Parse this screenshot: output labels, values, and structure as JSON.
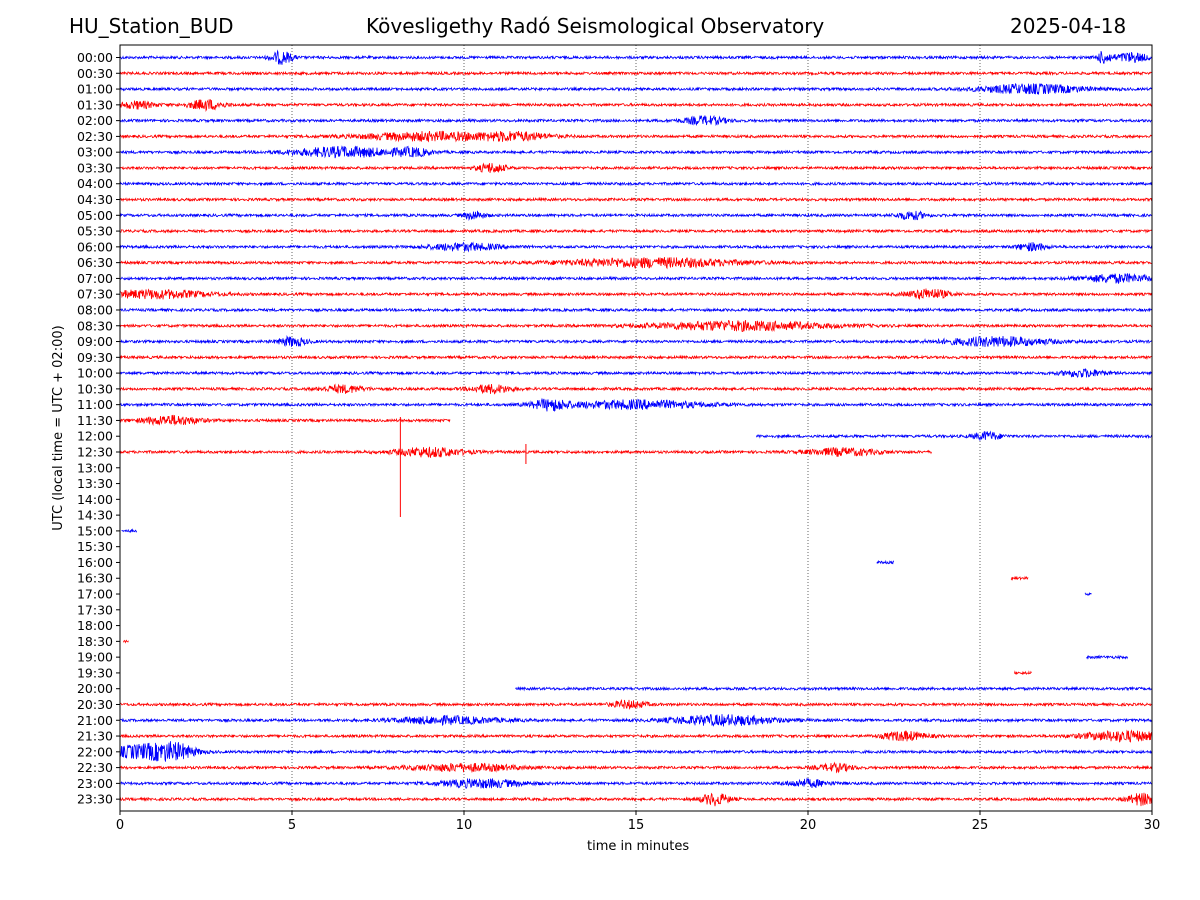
{
  "header": {
    "station": "HU_Station_BUD",
    "observatory": "Kövesligethy Radó Seismological Observatory",
    "date": "2025-04-18"
  },
  "chart_data": {
    "type": "line",
    "title": "Kövesligethy Radó Seismological Observatory",
    "xlabel": "time in minutes",
    "ylabel": "UTC (local time = UTC + 02:00)",
    "xlim": [
      0,
      30
    ],
    "xticks": [
      0,
      5,
      10,
      15,
      20,
      25,
      30
    ],
    "grid": "vertical dotted lines at every 5 minutes",
    "colors": {
      "even_rows": "#0000ff",
      "odd_rows": "#ff0000"
    },
    "rows": [
      {
        "label": "00:00",
        "color": "#0000ff",
        "segments": [
          [
            0,
            30
          ]
        ],
        "events": [
          {
            "t": 4.7,
            "amp": 1.4,
            "width": 0.3
          },
          {
            "t": 28.6,
            "amp": 1.3,
            "width": 0.2
          },
          {
            "t": 29.4,
            "amp": 1.0,
            "width": 0.5
          }
        ]
      },
      {
        "label": "00:30",
        "color": "#ff0000",
        "segments": [
          [
            0,
            30
          ]
        ],
        "events": []
      },
      {
        "label": "01:00",
        "color": "#0000ff",
        "segments": [
          [
            0,
            30
          ]
        ],
        "events": [
          {
            "t": 26.5,
            "amp": 1.0,
            "width": 1.5
          }
        ]
      },
      {
        "label": "01:30",
        "color": "#ff0000",
        "segments": [
          [
            0,
            30
          ]
        ],
        "events": [
          {
            "t": 2.5,
            "amp": 1.1,
            "width": 0.5
          },
          {
            "t": 0.5,
            "amp": 0.8,
            "width": 0.5
          }
        ]
      },
      {
        "label": "02:00",
        "color": "#0000ff",
        "segments": [
          [
            0,
            30
          ]
        ],
        "events": [
          {
            "t": 17.0,
            "amp": 0.9,
            "width": 0.6
          }
        ]
      },
      {
        "label": "02:30",
        "color": "#ff0000",
        "segments": [
          [
            0,
            30
          ]
        ],
        "events": [
          {
            "t": 9.0,
            "amp": 0.9,
            "width": 2.0
          },
          {
            "t": 11.5,
            "amp": 0.8,
            "width": 1.0
          }
        ]
      },
      {
        "label": "03:00",
        "color": "#0000ff",
        "segments": [
          [
            0,
            30
          ]
        ],
        "events": [
          {
            "t": 6.5,
            "amp": 1.1,
            "width": 1.5
          },
          {
            "t": 8.5,
            "amp": 0.8,
            "width": 0.5
          }
        ]
      },
      {
        "label": "03:30",
        "color": "#ff0000",
        "segments": [
          [
            0,
            30
          ]
        ],
        "events": [
          {
            "t": 10.8,
            "amp": 1.0,
            "width": 0.4
          }
        ]
      },
      {
        "label": "04:00",
        "color": "#0000ff",
        "segments": [
          [
            0,
            30
          ]
        ],
        "events": []
      },
      {
        "label": "04:30",
        "color": "#ff0000",
        "segments": [
          [
            0,
            30
          ]
        ],
        "events": []
      },
      {
        "label": "05:00",
        "color": "#0000ff",
        "segments": [
          [
            0,
            30
          ]
        ],
        "events": [
          {
            "t": 10.3,
            "amp": 0.9,
            "width": 0.3
          },
          {
            "t": 23.0,
            "amp": 0.9,
            "width": 0.4
          }
        ]
      },
      {
        "label": "05:30",
        "color": "#ff0000",
        "segments": [
          [
            0,
            30
          ]
        ],
        "events": []
      },
      {
        "label": "06:00",
        "color": "#0000ff",
        "segments": [
          [
            0,
            30
          ]
        ],
        "events": [
          {
            "t": 10.0,
            "amp": 0.8,
            "width": 1.0
          },
          {
            "t": 26.5,
            "amp": 0.8,
            "width": 0.4
          }
        ]
      },
      {
        "label": "06:30",
        "color": "#ff0000",
        "segments": [
          [
            0,
            30
          ]
        ],
        "events": [
          {
            "t": 15.5,
            "amp": 1.0,
            "width": 2.5
          }
        ]
      },
      {
        "label": "07:00",
        "color": "#0000ff",
        "segments": [
          [
            0,
            30
          ]
        ],
        "events": [
          {
            "t": 29.0,
            "amp": 0.9,
            "width": 1.0
          }
        ]
      },
      {
        "label": "07:30",
        "color": "#ff0000",
        "segments": [
          [
            0,
            30
          ]
        ],
        "events": [
          {
            "t": 23.5,
            "amp": 1.1,
            "width": 0.6
          },
          {
            "t": 1.0,
            "amp": 0.9,
            "width": 1.5
          }
        ]
      },
      {
        "label": "08:00",
        "color": "#0000ff",
        "segments": [
          [
            0,
            30
          ]
        ],
        "events": []
      },
      {
        "label": "08:30",
        "color": "#ff0000",
        "segments": [
          [
            0,
            30
          ]
        ],
        "events": [
          {
            "t": 18.0,
            "amp": 1.0,
            "width": 2.5
          }
        ]
      },
      {
        "label": "09:00",
        "color": "#0000ff",
        "segments": [
          [
            0,
            30
          ]
        ],
        "events": [
          {
            "t": 5.0,
            "amp": 1.0,
            "width": 0.4
          },
          {
            "t": 25.5,
            "amp": 1.0,
            "width": 1.5
          }
        ]
      },
      {
        "label": "09:30",
        "color": "#ff0000",
        "segments": [
          [
            0,
            30
          ]
        ],
        "events": []
      },
      {
        "label": "10:00",
        "color": "#0000ff",
        "segments": [
          [
            0,
            30
          ]
        ],
        "events": [
          {
            "t": 28.0,
            "amp": 0.8,
            "width": 0.6
          }
        ]
      },
      {
        "label": "10:30",
        "color": "#ff0000",
        "segments": [
          [
            0,
            30
          ]
        ],
        "events": [
          {
            "t": 10.8,
            "amp": 0.9,
            "width": 0.6
          },
          {
            "t": 6.5,
            "amp": 0.8,
            "width": 0.6
          }
        ]
      },
      {
        "label": "11:00",
        "color": "#0000ff",
        "segments": [
          [
            0,
            30
          ]
        ],
        "events": [
          {
            "t": 12.5,
            "amp": 1.1,
            "width": 0.5
          },
          {
            "t": 15.0,
            "amp": 0.9,
            "width": 2.0
          }
        ]
      },
      {
        "label": "11:30",
        "color": "#ff0000",
        "segments": [
          [
            0,
            9.6
          ]
        ],
        "events": [
          {
            "t": 1.5,
            "amp": 1.0,
            "width": 0.8
          }
        ]
      },
      {
        "label": "12:00",
        "color": "#0000ff",
        "segments": [
          [
            18.5,
            30
          ]
        ],
        "events": [
          {
            "t": 25.2,
            "amp": 0.9,
            "width": 0.4
          }
        ]
      },
      {
        "label": "12:30",
        "color": "#ff0000",
        "segments": [
          [
            0,
            23.6
          ]
        ],
        "events": [
          {
            "t": 9.0,
            "amp": 1.0,
            "width": 1.0
          },
          {
            "t": 21.0,
            "amp": 0.8,
            "width": 1.0
          }
        ],
        "spikes": [
          {
            "t": 8.15,
            "up": 35,
            "down": 65
          },
          {
            "t": 11.8,
            "up": 8,
            "down": 12
          }
        ]
      },
      {
        "label": "13:00",
        "color": "#0000ff",
        "segments": [],
        "events": []
      },
      {
        "label": "13:30",
        "color": "#ff0000",
        "segments": [],
        "events": []
      },
      {
        "label": "14:00",
        "color": "#0000ff",
        "segments": [],
        "events": []
      },
      {
        "label": "14:30",
        "color": "#ff0000",
        "segments": [],
        "events": []
      },
      {
        "label": "15:00",
        "color": "#0000ff",
        "segments": [
          [
            0.05,
            0.5
          ]
        ],
        "events": []
      },
      {
        "label": "15:30",
        "color": "#ff0000",
        "segments": [],
        "events": []
      },
      {
        "label": "16:00",
        "color": "#0000ff",
        "segments": [
          [
            22.0,
            22.5
          ]
        ],
        "events": []
      },
      {
        "label": "16:30",
        "color": "#ff0000",
        "segments": [
          [
            25.9,
            26.4
          ]
        ],
        "events": []
      },
      {
        "label": "17:00",
        "color": "#0000ff",
        "segments": [
          [
            28.05,
            28.25
          ]
        ],
        "events": []
      },
      {
        "label": "17:30",
        "color": "#ff0000",
        "segments": [],
        "events": []
      },
      {
        "label": "18:00",
        "color": "#0000ff",
        "segments": [],
        "events": []
      },
      {
        "label": "18:30",
        "color": "#ff0000",
        "segments": [
          [
            0.1,
            0.25
          ]
        ],
        "events": []
      },
      {
        "label": "19:00",
        "color": "#0000ff",
        "segments": [
          [
            28.1,
            29.3
          ]
        ],
        "events": []
      },
      {
        "label": "19:30",
        "color": "#ff0000",
        "segments": [
          [
            26.0,
            26.5
          ]
        ],
        "events": []
      },
      {
        "label": "20:00",
        "color": "#0000ff",
        "segments": [
          [
            11.5,
            30
          ]
        ],
        "events": []
      },
      {
        "label": "20:30",
        "color": "#ff0000",
        "segments": [
          [
            0,
            30
          ]
        ],
        "events": [
          {
            "t": 14.8,
            "amp": 0.8,
            "width": 0.5
          }
        ]
      },
      {
        "label": "21:00",
        "color": "#0000ff",
        "segments": [
          [
            0,
            30
          ]
        ],
        "events": [
          {
            "t": 17.5,
            "amp": 1.1,
            "width": 1.5
          },
          {
            "t": 9.5,
            "amp": 0.8,
            "width": 1.5
          }
        ]
      },
      {
        "label": "21:30",
        "color": "#ff0000",
        "segments": [
          [
            0,
            30
          ]
        ],
        "events": [
          {
            "t": 22.8,
            "amp": 1.0,
            "width": 0.6
          },
          {
            "t": 29.2,
            "amp": 1.1,
            "width": 1.2
          }
        ]
      },
      {
        "label": "22:00",
        "color": "#0000ff",
        "segments": [
          [
            0,
            30
          ]
        ],
        "events": [
          {
            "t": 0.6,
            "amp": 1.5,
            "width": 0.9
          },
          {
            "t": 1.6,
            "amp": 1.6,
            "width": 0.6
          }
        ]
      },
      {
        "label": "22:30",
        "color": "#ff0000",
        "segments": [
          [
            0,
            30
          ]
        ],
        "events": [
          {
            "t": 10.0,
            "amp": 0.8,
            "width": 1.5
          },
          {
            "t": 20.8,
            "amp": 0.8,
            "width": 0.5
          }
        ]
      },
      {
        "label": "23:00",
        "color": "#0000ff",
        "segments": [
          [
            0,
            30
          ]
        ],
        "events": [
          {
            "t": 10.5,
            "amp": 0.9,
            "width": 1.2
          },
          {
            "t": 20.0,
            "amp": 0.8,
            "width": 0.6
          }
        ]
      },
      {
        "label": "23:30",
        "color": "#ff0000",
        "segments": [
          [
            0,
            30
          ]
        ],
        "events": [
          {
            "t": 17.3,
            "amp": 1.3,
            "width": 0.4
          },
          {
            "t": 29.7,
            "amp": 1.3,
            "width": 0.4
          }
        ]
      }
    ]
  }
}
